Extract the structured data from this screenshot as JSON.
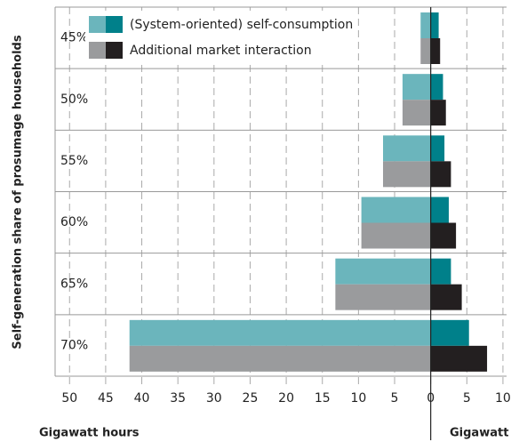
{
  "chart_data": {
    "type": "bar",
    "orientation": "horizontal",
    "ylabel": "Self-generation share of prosumage households",
    "xlabel_left": "Gigawatt hours",
    "xlabel_right": "Gigawatt",
    "categories": [
      "45%",
      "50%",
      "55%",
      "60%",
      "65%",
      "70%"
    ],
    "series": [
      {
        "name": "(System-oriented) self-consumption",
        "color": "#6bb5bc",
        "power_color": "#00808a",
        "values": [
          -1.4,
          -3.9,
          -6.6,
          -9.6,
          -13.2,
          -41.7
        ],
        "power_values": [
          1.1,
          1.7,
          1.9,
          2.5,
          2.8,
          5.3
        ]
      },
      {
        "name": "Additional market interaction",
        "color": "#9a9b9d",
        "power_color": "#231f20",
        "values": [
          -1.4,
          -3.9,
          -6.6,
          -9.6,
          -13.2,
          -41.7
        ],
        "power_values": [
          1.3,
          2.1,
          2.8,
          3.5,
          4.3,
          7.8
        ]
      }
    ],
    "xlim": [
      -52,
      10.5
    ],
    "xticks": [
      {
        "value": -50,
        "label": "50"
      },
      {
        "value": -45,
        "label": "45"
      },
      {
        "value": -40,
        "label": "40"
      },
      {
        "value": -35,
        "label": "35"
      },
      {
        "value": -30,
        "label": "30"
      },
      {
        "value": -25,
        "label": "25"
      },
      {
        "value": -20,
        "label": "20"
      },
      {
        "value": -15,
        "label": "15"
      },
      {
        "value": -10,
        "label": "10"
      },
      {
        "value": -5,
        "label": "5"
      },
      0,
      5,
      10
    ],
    "grid": true
  }
}
